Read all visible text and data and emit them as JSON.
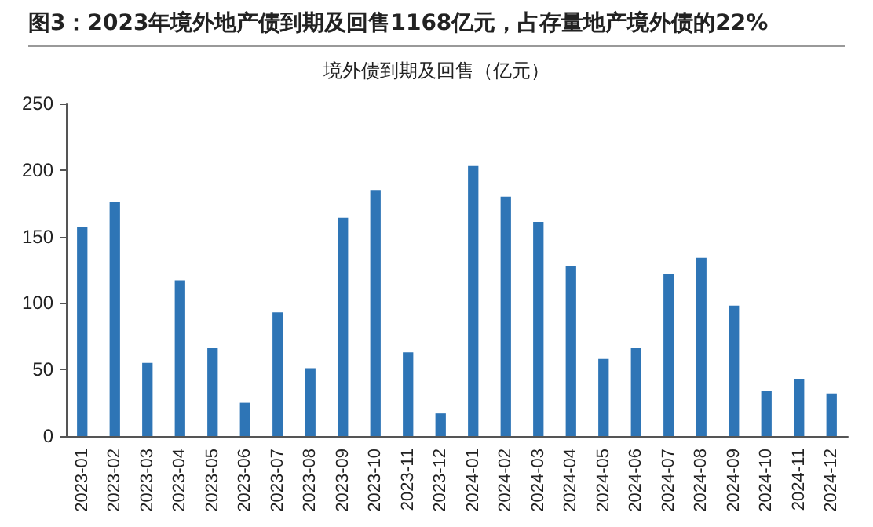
{
  "chart_data": {
    "type": "bar",
    "title": "图3：2023年境外地产债到期及回售1168亿元，占存量地产境外债的22%",
    "subtitle": "境外债到期及回售（亿元）",
    "categories": [
      "2023-01",
      "2023-02",
      "2023-03",
      "2023-04",
      "2023-05",
      "2023-06",
      "2023-07",
      "2023-08",
      "2023-09",
      "2023-10",
      "2023-11",
      "2023-12",
      "2024-01",
      "2024-02",
      "2024-03",
      "2024-04",
      "2024-05",
      "2024-06",
      "2024-07",
      "2024-08",
      "2024-09",
      "2024-10",
      "2024-11",
      "2024-12"
    ],
    "values": [
      157,
      176,
      55,
      117,
      66,
      25,
      93,
      51,
      164,
      185,
      63,
      17,
      203,
      180,
      161,
      128,
      58,
      66,
      122,
      134,
      98,
      34,
      43,
      32
    ],
    "color": "#2e75b6",
    "ylim": [
      0,
      250
    ],
    "yticks": [
      0,
      50,
      100,
      150,
      200,
      250
    ],
    "grid": false
  }
}
